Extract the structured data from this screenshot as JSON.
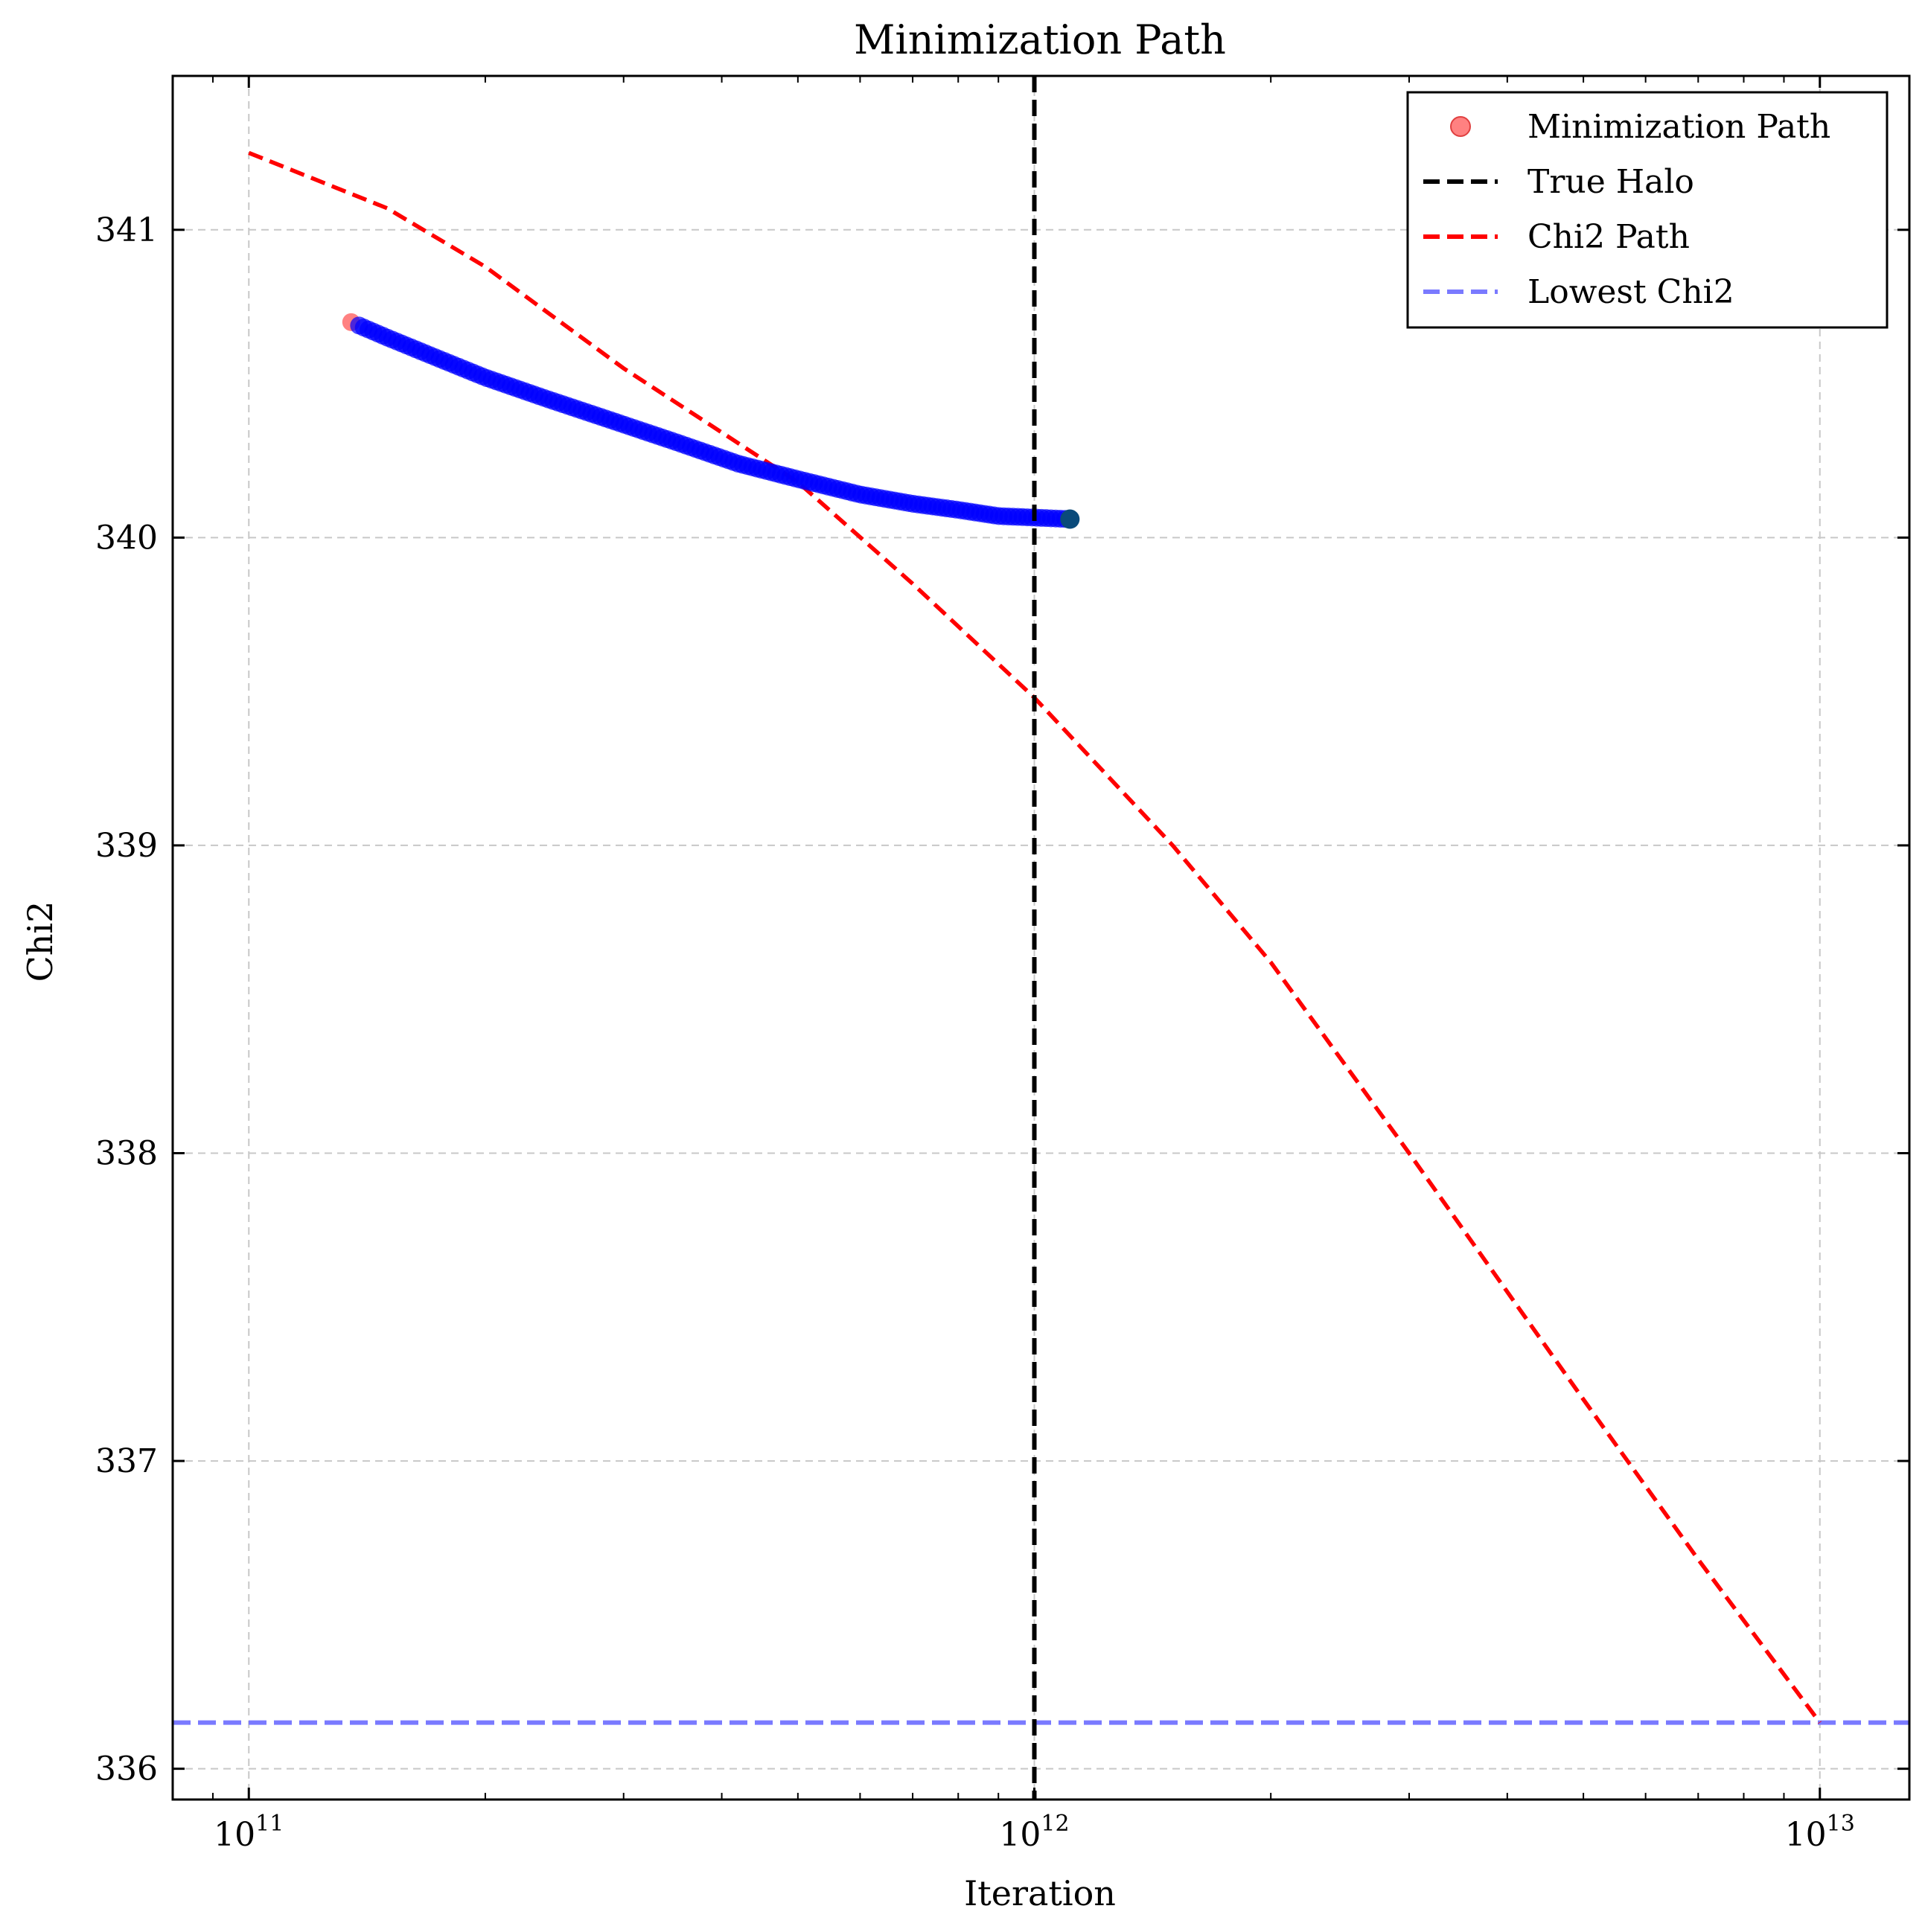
{
  "colors": {
    "background": "#ffffff",
    "grid": "#c8c8c8",
    "axis": "#000000",
    "path_point_start": "#ff6b6b",
    "path_points": "#0000ff",
    "path_point_end": "#0a4a7a",
    "true_halo": "#000000",
    "chi2_path": "#ff0000",
    "lowest_chi2": "#7a7aff"
  },
  "chart_data": {
    "type": "line",
    "title": "Minimization Path",
    "xlabel": "Iteration",
    "ylabel": "Chi2",
    "x_scale": "log",
    "xlim": [
      80000000000,
      13000000000000
    ],
    "ylim": [
      335.9,
      341.5
    ],
    "grid": true,
    "legend_position": "top-right",
    "x_ticks": [
      {
        "value": 100000000000,
        "base": "10",
        "exp": "11"
      },
      {
        "value": 1000000000000,
        "base": "10",
        "exp": "12"
      },
      {
        "value": 10000000000000,
        "base": "10",
        "exp": "13"
      }
    ],
    "y_ticks": [
      {
        "value": 336,
        "label": "336"
      },
      {
        "value": 337,
        "label": "337"
      },
      {
        "value": 338,
        "label": "338"
      },
      {
        "value": 339,
        "label": "339"
      },
      {
        "value": 340,
        "label": "340"
      },
      {
        "value": 341,
        "label": "341"
      }
    ],
    "series": [
      {
        "name": "Minimization Path",
        "kind": "scatter",
        "x_start": 135000000000,
        "y_start": 340.7,
        "x_end": 1110000000000,
        "y_end": 340.06,
        "points": [
          [
            135000000000,
            340.7
          ],
          [
            150000000000,
            340.65
          ],
          [
            175000000000,
            340.58
          ],
          [
            200000000000,
            340.52
          ],
          [
            240000000000,
            340.45
          ],
          [
            290000000000,
            340.38
          ],
          [
            350000000000,
            340.31
          ],
          [
            420000000000,
            340.24
          ],
          [
            500000000000,
            340.19
          ],
          [
            600000000000,
            340.14
          ],
          [
            700000000000,
            340.11
          ],
          [
            800000000000,
            340.09
          ],
          [
            900000000000,
            340.07
          ],
          [
            1000000000000,
            340.065
          ],
          [
            1110000000000,
            340.06
          ]
        ]
      },
      {
        "name": "True Halo",
        "kind": "vline",
        "x": 1000000000000
      },
      {
        "name": "Chi2 Path",
        "kind": "line",
        "points": [
          [
            100000000000,
            341.25
          ],
          [
            150000000000,
            341.07
          ],
          [
            200000000000,
            340.88
          ],
          [
            300000000000,
            340.55
          ],
          [
            500000000000,
            340.18
          ],
          [
            700000000000,
            339.85
          ],
          [
            1000000000000,
            339.48
          ],
          [
            1500000000000,
            339.0
          ],
          [
            2000000000000,
            338.62
          ],
          [
            3000000000000,
            338.0
          ],
          [
            5000000000000,
            337.2
          ],
          [
            7000000000000,
            336.68
          ],
          [
            10000000000000,
            336.15
          ]
        ]
      },
      {
        "name": "Lowest Chi2",
        "kind": "hline",
        "y": 336.15
      }
    ]
  }
}
